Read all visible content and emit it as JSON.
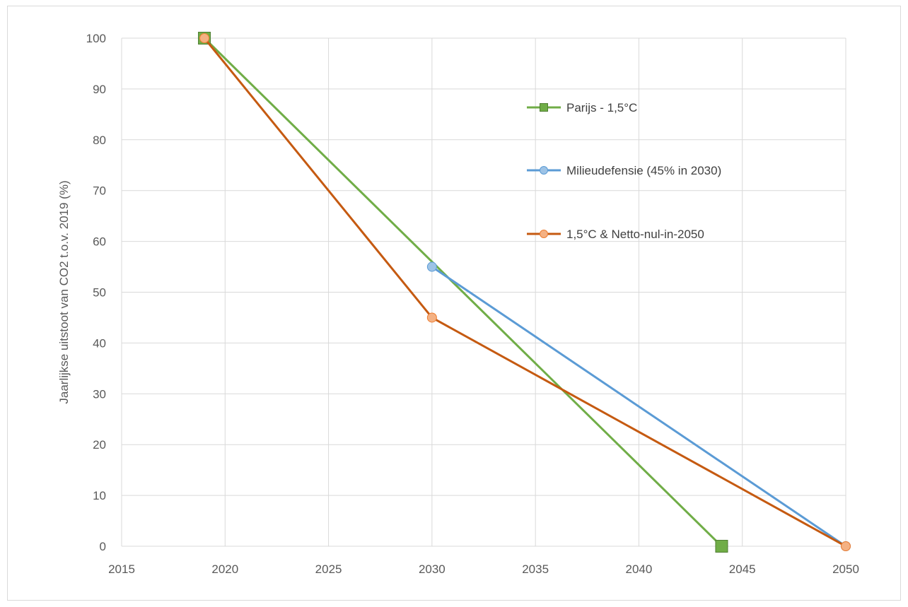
{
  "chart_data": {
    "type": "line",
    "ylabel": "Jaarlijkse uitstoot van CO2 t.o.v. 2019 (%)",
    "xlabel": "",
    "xlim": [
      2015,
      2050
    ],
    "ylim": [
      0,
      100
    ],
    "x_ticks": [
      "2015",
      "2020",
      "2025",
      "2030",
      "2035",
      "2040",
      "2045",
      "2050"
    ],
    "y_ticks": [
      "0",
      "10",
      "20",
      "30",
      "40",
      "50",
      "60",
      "70",
      "80",
      "90",
      "100"
    ],
    "grid": true,
    "legend_position": "right",
    "series": [
      {
        "name": "Parijs - 1,5°C",
        "color": "#70ad47",
        "marker": "square",
        "points": [
          {
            "x": 2019,
            "y": 100
          },
          {
            "x": 2044,
            "y": 0
          }
        ]
      },
      {
        "name": "Milieudefensie (45% in 2030)",
        "color": "#5b9bd5",
        "marker": "circle",
        "points": [
          {
            "x": 2030,
            "y": 55
          },
          {
            "x": 2050,
            "y": 0
          }
        ]
      },
      {
        "name": "1,5°C & Netto-nul-in-2050",
        "color": "#c55a11",
        "marker_fill": "#f4b183",
        "marker": "circle",
        "points": [
          {
            "x": 2019,
            "y": 100
          },
          {
            "x": 2030,
            "y": 45
          },
          {
            "x": 2050,
            "y": 0
          }
        ]
      }
    ]
  }
}
